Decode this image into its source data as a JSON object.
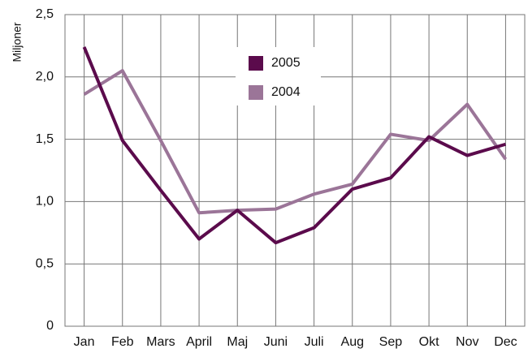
{
  "chart_data": {
    "type": "line",
    "y_label": "Miljoner",
    "categories": [
      "Jan",
      "Feb",
      "Mars",
      "April",
      "Maj",
      "Juni",
      "Juli",
      "Aug",
      "Sep",
      "Okt",
      "Nov",
      "Dec"
    ],
    "series": [
      {
        "name": "2005",
        "color": "#5b0b4c",
        "values": [
          2.24,
          1.49,
          1.09,
          0.7,
          0.93,
          0.67,
          0.79,
          1.1,
          1.19,
          1.52,
          1.37,
          1.46
        ]
      },
      {
        "name": "2004",
        "color": "#9b7598",
        "values": [
          1.86,
          2.05,
          1.49,
          0.91,
          0.93,
          0.94,
          1.06,
          1.14,
          1.54,
          1.49,
          1.78,
          1.34
        ]
      }
    ],
    "ylim": [
      0,
      2.5
    ],
    "yticks": [
      0,
      {
        "value": 0.5,
        "label": "0,5"
      },
      {
        "value": 1.0,
        "label": "1,0"
      },
      {
        "value": 1.5,
        "label": "1,5"
      },
      {
        "value": 2.0,
        "label": "2,0"
      },
      {
        "value": 2.5,
        "label": "2,5"
      }
    ],
    "grid": true,
    "legend": "top-center"
  }
}
